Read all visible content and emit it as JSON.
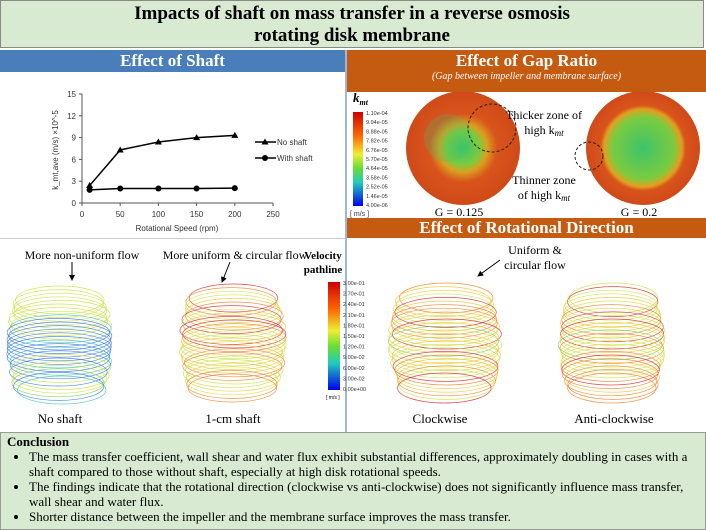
{
  "title": {
    "line1": "Impacts of shaft on mass transfer in a reverse osmosis",
    "line2": "rotating disk membrane"
  },
  "shaft": {
    "header": "Effect of Shaft",
    "annot_left": "More non-uniform flow",
    "annot_right": "More uniform & circular flow",
    "label_left": "No shaft",
    "label_right": "1-cm shaft"
  },
  "gap": {
    "header": "Effect of Gap Ratio",
    "subheader": "(Gap between impeller and membrane surface)",
    "kmt_label": "k",
    "kmt_sub": "mt",
    "colorbar": [
      "1.10e-04",
      "9.94e-05",
      "8.88e-05",
      "7.82e-05",
      "6.76e-05",
      "5.70e-05",
      "4.64e-05",
      "3.58e-05",
      "2.52e-05",
      "1.46e-05",
      "4.00e-06"
    ],
    "unit": "[ m/s ]",
    "thicker": "Thicker zone of",
    "thicker2": "high k",
    "thinner": "Thinner zone",
    "thinner2": "of high k",
    "g1": "G = 0.125",
    "g2": "G = 0.2"
  },
  "rotation": {
    "header": "Effect of Rotational Direction",
    "annot": "Uniform &",
    "annot2": "circular flow",
    "label_left": "Clockwise",
    "label_right": "Anti-clockwise"
  },
  "velocity": {
    "title1": "Velocity",
    "title2": "pathline",
    "colorbar": [
      "3.00e-01",
      "2.70e-01",
      "2.40e-01",
      "2.10e-01",
      "1.80e-01",
      "1.50e-01",
      "1.20e-01",
      "9.00e-02",
      "6.00e-02",
      "3.00e-02",
      "0.00e+00"
    ],
    "unit": "[ m/s ]"
  },
  "colors": {
    "blue_header": "#4a7ebb",
    "orange_header": "#c55a11",
    "green_box": "#d9ead3",
    "disk_red": "#d9541c",
    "disk_green": "#7ccb3f"
  },
  "chart_data": {
    "type": "line",
    "xlabel": "Rotational Speed (rpm)",
    "ylabel": "k_mt,ave (m/s) ×10^-5",
    "xlim": [
      0,
      250
    ],
    "ylim": [
      0,
      15
    ],
    "xticks": [
      0,
      50,
      100,
      150,
      200,
      250
    ],
    "yticks": [
      0,
      3,
      6,
      9,
      12,
      15
    ],
    "legend": "right",
    "x": [
      10,
      50,
      100,
      150,
      200
    ],
    "series": [
      {
        "name": "No shaft",
        "marker": "triangle",
        "values": [
          2.4,
          7.3,
          8.4,
          9.0,
          9.3
        ]
      },
      {
        "name": "With shaft",
        "marker": "circle",
        "values": [
          1.8,
          2.0,
          2.0,
          2.0,
          2.05
        ]
      }
    ]
  },
  "conclusion": {
    "title": "Conclusion",
    "items": [
      "The mass transfer coefficient, wall shear and water flux exhibit substantial differences, approximately doubling in cases with a shaft compared to those without shaft, especially at high disk rotational speeds.",
      "The findings indicate that the rotational direction (clockwise vs anti-clockwise) does not significantly influence mass transfer, wall shear and water flux.",
      "Shorter distance between the impeller and the membrane surface improves the mass transfer."
    ]
  }
}
